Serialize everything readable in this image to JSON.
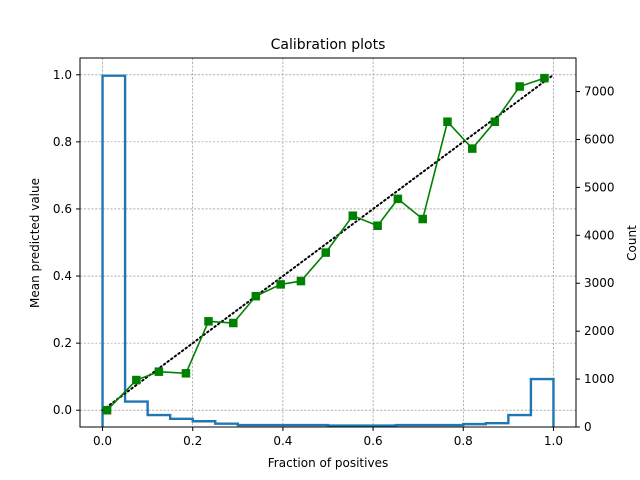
{
  "chart_data": {
    "type": "line",
    "title": "Calibration plots",
    "xlabel": "Fraction of positives",
    "ylabel": "Mean predicted value",
    "y2label": "Count",
    "xlim": [
      -0.05,
      1.05
    ],
    "ylim": [
      -0.05,
      1.05
    ],
    "y2lim": [
      0,
      7700
    ],
    "grid": true,
    "x_ticks": [
      0.0,
      0.2,
      0.4,
      0.6,
      0.8,
      1.0
    ],
    "x_tick_labels": [
      "0.0",
      "0.2",
      "0.4",
      "0.6",
      "0.8",
      "1.0"
    ],
    "y_ticks": [
      0.0,
      0.2,
      0.4,
      0.6,
      0.8,
      1.0
    ],
    "y_tick_labels": [
      "0.0",
      "0.2",
      "0.4",
      "0.6",
      "0.8",
      "1.0"
    ],
    "y2_ticks": [
      0,
      1000,
      2000,
      3000,
      4000,
      5000,
      6000,
      7000
    ],
    "y2_tick_labels": [
      "0",
      "1000",
      "2000",
      "3000",
      "4000",
      "5000",
      "6000",
      "7000"
    ],
    "reference_line": {
      "x": [
        0.0,
        1.0
      ],
      "y": [
        0.0,
        1.0
      ],
      "color": "#000000",
      "style": "dotted"
    },
    "calibration_series": {
      "x": [
        0.01,
        0.075,
        0.125,
        0.185,
        0.235,
        0.29,
        0.34,
        0.395,
        0.44,
        0.495,
        0.555,
        0.61,
        0.655,
        0.71,
        0.765,
        0.82,
        0.87,
        0.925,
        0.98
      ],
      "y": [
        0.0,
        0.09,
        0.115,
        0.11,
        0.265,
        0.26,
        0.34,
        0.375,
        0.385,
        0.47,
        0.58,
        0.55,
        0.63,
        0.57,
        0.86,
        0.78,
        0.86,
        0.965,
        0.99
      ],
      "color": "#008000",
      "marker": "square"
    },
    "histogram": {
      "bin_edges": [
        0.0,
        0.05,
        0.1,
        0.15,
        0.2,
        0.25,
        0.3,
        0.35,
        0.4,
        0.45,
        0.5,
        0.55,
        0.6,
        0.65,
        0.7,
        0.75,
        0.8,
        0.85,
        0.9,
        0.95,
        1.0
      ],
      "counts": [
        7330,
        530,
        250,
        170,
        120,
        70,
        40,
        40,
        40,
        40,
        30,
        30,
        30,
        40,
        40,
        40,
        60,
        80,
        250,
        1000
      ],
      "color": "#1f77b4"
    }
  }
}
